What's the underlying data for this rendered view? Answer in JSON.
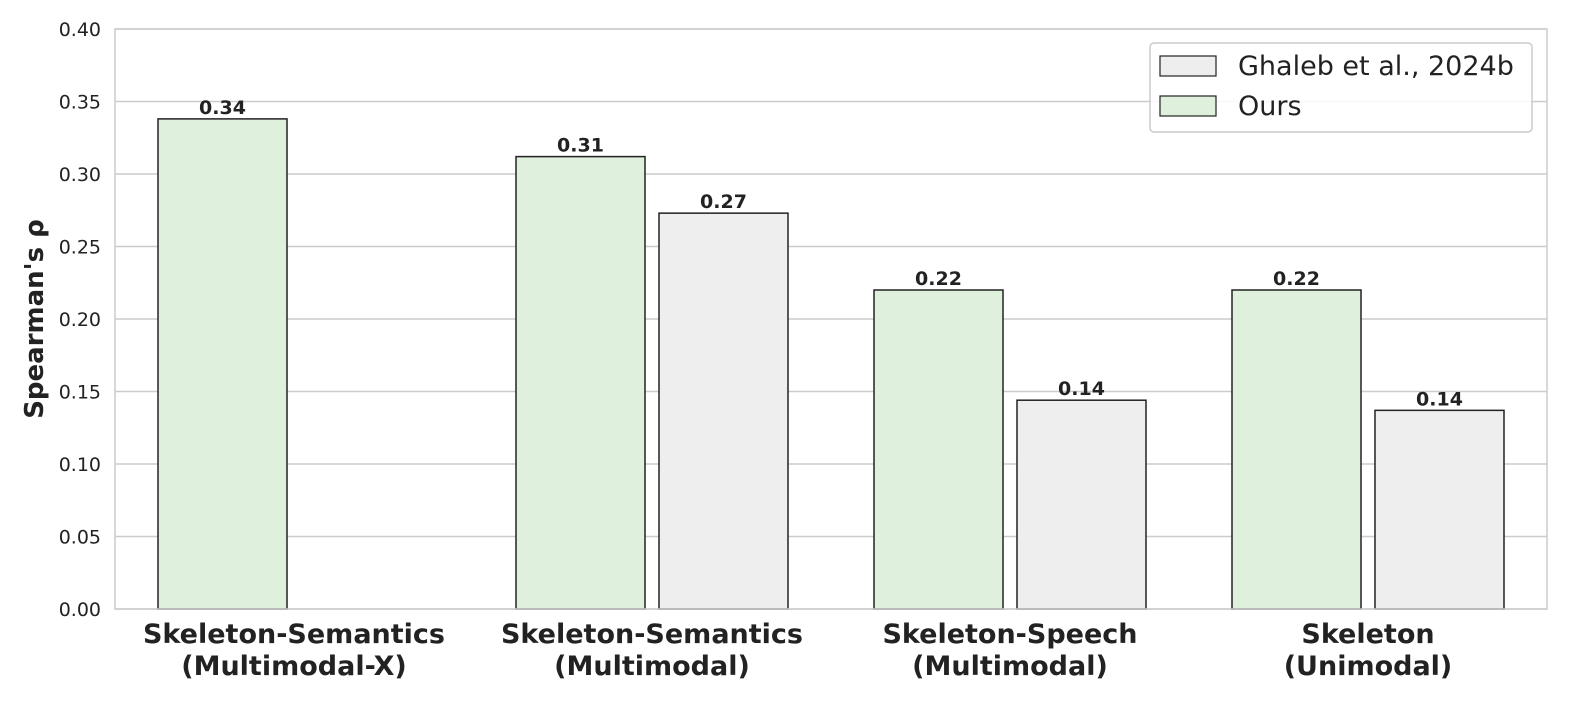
{
  "chart_data": {
    "type": "bar",
    "ylabel": "Spearman's ρ",
    "xlabel": "",
    "ylim": [
      0,
      0.4
    ],
    "yticks": [
      "0.00",
      "0.05",
      "0.10",
      "0.15",
      "0.20",
      "0.25",
      "0.30",
      "0.35",
      "0.40"
    ],
    "grid": true,
    "legend_position": "top-right",
    "categories": [
      [
        "Skeleton-Semantics",
        "(Multimodal-X)"
      ],
      [
        "Skeleton-Semantics",
        "(Multimodal)"
      ],
      [
        "Skeleton-Speech",
        "(Multimodal)"
      ],
      [
        "Skeleton",
        "(Unimodal)"
      ]
    ],
    "series": [
      {
        "name": "Ours",
        "color": "#dff1dc",
        "values": [
          0.338,
          0.312,
          0.22,
          0.22
        ],
        "labels": [
          "0.34",
          "0.31",
          "0.22",
          "0.22"
        ]
      },
      {
        "name": "Ghaleb et al., 2024b",
        "color": "#eeeeee",
        "values": [
          null,
          0.273,
          0.144,
          0.137
        ],
        "labels": [
          "",
          "0.27",
          "0.14",
          "0.14"
        ]
      }
    ],
    "legend_order": [
      "Ghaleb et al., 2024b",
      "Ours"
    ]
  }
}
